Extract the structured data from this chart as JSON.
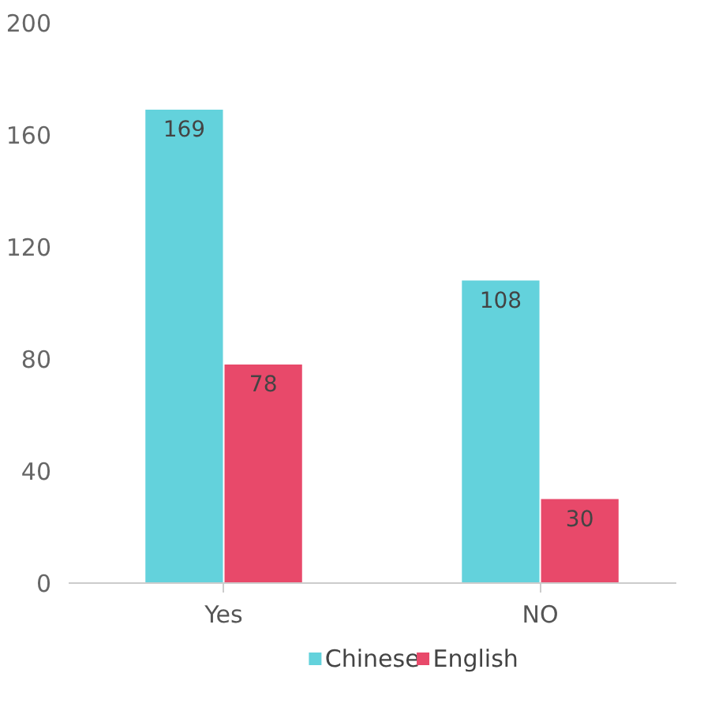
{
  "chart_data": {
    "type": "bar",
    "categories": [
      "Yes",
      "NO"
    ],
    "series": [
      {
        "name": "Chinese",
        "color": "#63d2dc",
        "values": [
          169,
          108
        ]
      },
      {
        "name": "English",
        "color": "#e8496a",
        "values": [
          78,
          30
        ]
      }
    ],
    "ylim": [
      0,
      200
    ],
    "yticks": [
      0,
      40,
      80,
      120,
      160,
      200
    ],
    "grid": false,
    "legend": "bottom",
    "data_labels": true
  }
}
